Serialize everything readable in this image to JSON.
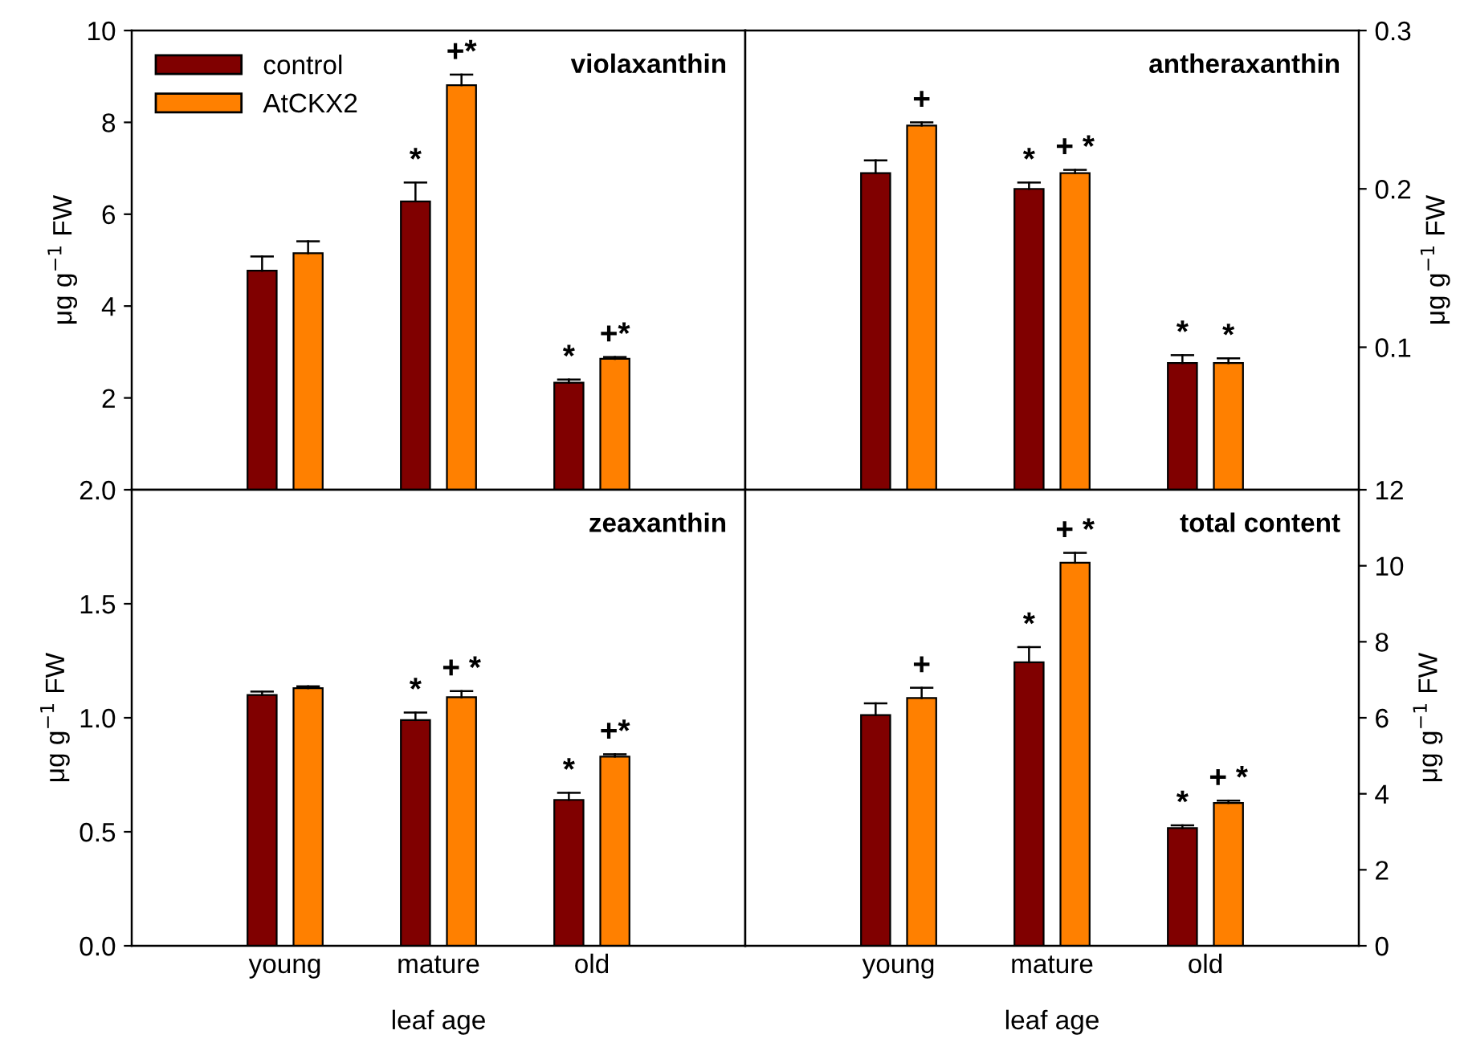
{
  "chart_data": [
    {
      "type": "bar",
      "title": "violaxanthin",
      "ylabel": "μg g$^{−1}$ FW",
      "categories": [
        null,
        null,
        null
      ],
      "ylim": [
        0,
        10
      ],
      "yticks": [
        2,
        4,
        6,
        8,
        10
      ],
      "tick_labels": "y",
      "legend": "top left",
      "series": [
        {
          "name": "control",
          "color": "#800000",
          "values": [
            4.77,
            6.28,
            2.33
          ],
          "errors": [
            [
              4.77,
              5.08
            ],
            [
              6.28,
              6.69
            ],
            [
              2.33,
              2.4
            ]
          ],
          "value_labels": [
            null,
            "*",
            "*"
          ]
        },
        {
          "name": "AtCKX2",
          "color": "#ff8000",
          "values": [
            5.15,
            8.81,
            2.85
          ],
          "errors": [
            [
              5.15,
              5.41
            ],
            [
              8.81,
              9.04
            ],
            [
              2.85,
              2.89
            ]
          ],
          "value_labels": [
            null,
            "+*",
            "+*"
          ]
        }
      ]
    },
    {
      "type": "bar",
      "title": "antheraxanthin",
      "ylabel": "μg g$^{−1}$ FW",
      "categories": [
        null,
        null,
        null
      ],
      "ylim": [
        0.01,
        0.3
      ],
      "yticks": [
        0.1,
        0.2,
        0.3
      ],
      "tick_labels": "y",
      "series": [
        {
          "color": "#800000",
          "values": [
            0.21,
            0.2,
            0.09
          ],
          "errors": [
            [
              0.21,
              0.218
            ],
            [
              0.2,
              0.204
            ],
            [
              0.09,
              0.095
            ]
          ],
          "value_labels": [
            null,
            "*",
            "*"
          ]
        },
        {
          "color": "#ff8000",
          "values": [
            0.24,
            0.21,
            0.09
          ],
          "errors": [
            [
              0.24,
              0.242
            ],
            [
              0.21,
              0.212
            ],
            [
              0.09,
              0.093
            ]
          ],
          "value_labels": [
            "+",
            "+ *",
            "*"
          ]
        }
      ]
    },
    {
      "type": "bar",
      "title": "zeaxanthin",
      "xlabel": "leaf age",
      "ylabel": "μg g$^{−1}$ FW",
      "categories": [
        "young",
        "mature",
        "old"
      ],
      "ylim": [
        0,
        2.0
      ],
      "yticks": [
        {
          "value": 0,
          "label": "0.0"
        },
        0.5,
        {
          "value": 1,
          "label": "1.0"
        },
        1.5,
        {
          "value": 2,
          "label": "2.0"
        }
      ],
      "series": [
        {
          "color": "#800000",
          "values": [
            1.1,
            0.99,
            0.64
          ],
          "errors": [
            [
              1.1,
              1.115
            ],
            [
              0.99,
              1.023
            ],
            [
              0.64,
              0.671
            ]
          ],
          "value_labels": [
            null,
            "*",
            "*"
          ]
        },
        {
          "color": "#ff8000",
          "values": [
            1.13,
            1.09,
            0.83
          ],
          "errors": [
            [
              1.13,
              1.138
            ],
            [
              1.09,
              1.117
            ],
            [
              0.83,
              0.84
            ]
          ],
          "value_labels": [
            null,
            "+ *",
            "+*"
          ]
        }
      ]
    },
    {
      "type": "bar",
      "title": "total content",
      "xlabel": "leaf age",
      "y2label": "μg g$^{−1}$ FW",
      "categories": [
        "young",
        "mature",
        "old"
      ],
      "y2lim": [
        0,
        12
      ],
      "y2ticks": [
        0,
        2,
        4,
        6,
        8,
        10,
        12
      ],
      "series": [
        {
          "color": "#800000",
          "axis": "y2",
          "values": [
            6.07,
            7.46,
            3.1
          ],
          "errors": [
            [
              6.07,
              6.38
            ],
            [
              7.46,
              7.86
            ],
            [
              3.1,
              3.17
            ]
          ],
          "value_labels": [
            null,
            "*",
            "*"
          ]
        },
        {
          "color": "#ff8000",
          "axis": "y2",
          "values": [
            6.52,
            10.08,
            3.76
          ],
          "errors": [
            [
              6.52,
              6.79
            ],
            [
              10.08,
              10.34
            ],
            [
              3.76,
              3.82
            ]
          ],
          "value_labels": [
            "+",
            "+ *",
            "+ *"
          ]
        }
      ]
    }
  ]
}
